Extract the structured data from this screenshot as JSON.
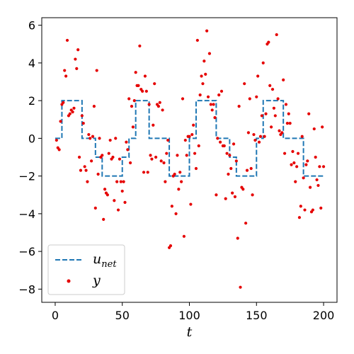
{
  "chart_data": {
    "type": "line",
    "title": "",
    "xlabel": "t",
    "ylabel": "",
    "xlim": [
      -10,
      210
    ],
    "ylim": [
      -8.7,
      6.4
    ],
    "xticks": [
      0,
      50,
      100,
      150,
      200
    ],
    "yticks": [
      -8,
      -6,
      -4,
      -2,
      0,
      2,
      4,
      6
    ],
    "x_tick_labels": [
      "0",
      "50",
      "100",
      "150",
      "200"
    ],
    "y_tick_labels": [
      "−8",
      "−6",
      "−4",
      "−2",
      "0",
      "2",
      "4",
      "6"
    ],
    "grid": false,
    "legend_position": "lower-left",
    "series": [
      {
        "name": "u",
        "name_subscript": "net",
        "style": "dashed-step",
        "color": "#1f77b4",
        "segments": [
          {
            "x0": 0,
            "x1": 5,
            "y": 0
          },
          {
            "x0": 5,
            "x1": 20,
            "y": 2
          },
          {
            "x0": 20,
            "x1": 30,
            "y": 0
          },
          {
            "x0": 30,
            "x1": 35,
            "y": -1
          },
          {
            "x0": 35,
            "x1": 50,
            "y": -2
          },
          {
            "x0": 50,
            "x1": 55,
            "y": -1
          },
          {
            "x0": 55,
            "x1": 60,
            "y": 0
          },
          {
            "x0": 60,
            "x1": 70,
            "y": 2
          },
          {
            "x0": 70,
            "x1": 85,
            "y": 0
          },
          {
            "x0": 85,
            "x1": 100,
            "y": -2
          },
          {
            "x0": 100,
            "x1": 105,
            "y": 0
          },
          {
            "x0": 105,
            "x1": 120,
            "y": 2
          },
          {
            "x0": 120,
            "x1": 130,
            "y": 0
          },
          {
            "x0": 130,
            "x1": 135,
            "y": -1
          },
          {
            "x0": 135,
            "x1": 150,
            "y": -2
          },
          {
            "x0": 150,
            "x1": 155,
            "y": 0
          },
          {
            "x0": 155,
            "x1": 170,
            "y": 2
          },
          {
            "x0": 170,
            "x1": 185,
            "y": 0
          },
          {
            "x0": 185,
            "x1": 200,
            "y": -2
          }
        ]
      },
      {
        "name": "y",
        "style": "scatter",
        "color": "#e50000",
        "points": [
          [
            1,
            -0.1
          ],
          [
            2,
            -0.5
          ],
          [
            3,
            -0.6
          ],
          [
            4,
            0.9
          ],
          [
            5,
            1.8
          ],
          [
            6,
            1.9
          ],
          [
            7,
            3.6
          ],
          [
            8,
            3.3
          ],
          [
            9,
            5.2
          ],
          [
            10,
            1.2
          ],
          [
            11,
            1.3
          ],
          [
            12,
            1.5
          ],
          [
            13,
            1.4
          ],
          [
            14,
            1.6
          ],
          [
            15,
            4.2
          ],
          [
            16,
            3.7
          ],
          [
            17,
            4.7
          ],
          [
            18,
            -1.0
          ],
          [
            19,
            -1.7
          ],
          [
            20,
            1.2
          ],
          [
            21,
            0.8
          ],
          [
            22,
            -1.5
          ],
          [
            23,
            -1.7
          ],
          [
            24,
            -2.3
          ],
          [
            25,
            0.2
          ],
          [
            26,
            0.0
          ],
          [
            27,
            -1.2
          ],
          [
            28,
            0.1
          ],
          [
            29,
            1.7
          ],
          [
            30,
            -3.7
          ],
          [
            31,
            3.6
          ],
          [
            32,
            -1.9
          ],
          [
            33,
            0.0
          ],
          [
            34,
            -1.0
          ],
          [
            35,
            -0.9
          ],
          [
            36,
            -4.3
          ],
          [
            37,
            -2.7
          ],
          [
            38,
            -2.9
          ],
          [
            39,
            -3.0
          ],
          [
            40,
            -0.8
          ],
          [
            41,
            -0.1
          ],
          [
            42,
            -1.1
          ],
          [
            43,
            -1.0
          ],
          [
            44,
            -3.3
          ],
          [
            45,
            0.0
          ],
          [
            46,
            -2.3
          ],
          [
            47,
            -3.8
          ],
          [
            48,
            -1.1
          ],
          [
            49,
            -2.3
          ],
          [
            50,
            -2.8
          ],
          [
            51,
            -2.3
          ],
          [
            52,
            -3.4
          ],
          [
            53,
            -0.2
          ],
          [
            54,
            -0.6
          ],
          [
            55,
            2.1
          ],
          [
            56,
            -1.3
          ],
          [
            57,
            1.7
          ],
          [
            58,
            0.6
          ],
          [
            59,
            2.0
          ],
          [
            60,
            3.5
          ],
          [
            61,
            2.8
          ],
          [
            62,
            2.8
          ],
          [
            63,
            4.9
          ],
          [
            64,
            2.6
          ],
          [
            65,
            2.5
          ],
          [
            66,
            -1.8
          ],
          [
            67,
            3.3
          ],
          [
            68,
            2.5
          ],
          [
            69,
            -1.8
          ],
          [
            70,
            1.8
          ],
          [
            71,
            -0.9
          ],
          [
            72,
            -1.1
          ],
          [
            73,
            0.7
          ],
          [
            74,
            2.9
          ],
          [
            75,
            -1.0
          ],
          [
            76,
            1.8
          ],
          [
            77,
            1.7
          ],
          [
            78,
            1.9
          ],
          [
            79,
            -1.2
          ],
          [
            80,
            1.5
          ],
          [
            81,
            -1.3
          ],
          [
            82,
            -2.3
          ],
          [
            83,
            -0.8
          ],
          [
            84,
            -0.1
          ],
          [
            85,
            -5.8
          ],
          [
            86,
            -5.7
          ],
          [
            87,
            -3.6
          ],
          [
            88,
            -2.0
          ],
          [
            89,
            -1.9
          ],
          [
            90,
            -4.0
          ],
          [
            91,
            -0.9
          ],
          [
            92,
            -2.7
          ],
          [
            93,
            -1.8
          ],
          [
            94,
            -2.3
          ],
          [
            95,
            2.1
          ],
          [
            96,
            -5.2
          ],
          [
            97,
            -0.1
          ],
          [
            98,
            -0.9
          ],
          [
            99,
            0.1
          ],
          [
            100,
            0.1
          ],
          [
            101,
            -3.5
          ],
          [
            102,
            0.2
          ],
          [
            103,
            0.7
          ],
          [
            104,
            -0.8
          ],
          [
            105,
            -1.6
          ],
          [
            106,
            5.2
          ],
          [
            107,
            -0.4
          ],
          [
            108,
            2.3
          ],
          [
            109,
            3.3
          ],
          [
            110,
            2.9
          ],
          [
            111,
            4.1
          ],
          [
            112,
            3.4
          ],
          [
            113,
            5.7
          ],
          [
            114,
            2.2
          ],
          [
            115,
            4.5
          ],
          [
            116,
            1.8
          ],
          [
            117,
            1.5
          ],
          [
            118,
            1.8
          ],
          [
            119,
            1.1
          ],
          [
            120,
            -3.0
          ],
          [
            121,
            0.0
          ],
          [
            122,
            2.3
          ],
          [
            123,
            -0.2
          ],
          [
            124,
            2.5
          ],
          [
            125,
            -0.4
          ],
          [
            126,
            -0.4
          ],
          [
            127,
            -3.2
          ],
          [
            128,
            -0.8
          ],
          [
            129,
            -1.9
          ],
          [
            130,
            -0.9
          ],
          [
            131,
            -1.6
          ],
          [
            132,
            -2.9
          ],
          [
            133,
            -0.3
          ],
          [
            134,
            -3.1
          ],
          [
            135,
            -1.2
          ],
          [
            136,
            -5.3
          ],
          [
            137,
            1.7
          ],
          [
            138,
            -7.9
          ],
          [
            139,
            -2.6
          ],
          [
            140,
            -2.7
          ],
          [
            141,
            2.9
          ],
          [
            142,
            -4.5
          ],
          [
            143,
            -1.7
          ],
          [
            144,
            0.3
          ],
          [
            145,
            2.1
          ],
          [
            146,
            -1.6
          ],
          [
            147,
            -3.0
          ],
          [
            148,
            0.2
          ],
          [
            149,
            -0.1
          ],
          [
            150,
            2.2
          ],
          [
            151,
            3.3
          ],
          [
            152,
            -0.2
          ],
          [
            153,
            0.1
          ],
          [
            154,
            1.2
          ],
          [
            155,
            4.0
          ],
          [
            156,
            0.1
          ],
          [
            157,
            1.3
          ],
          [
            158,
            5.0
          ],
          [
            159,
            5.1
          ],
          [
            160,
            2.8
          ],
          [
            161,
            0.6
          ],
          [
            162,
            2.6
          ],
          [
            163,
            1.6
          ],
          [
            164,
            1.2
          ],
          [
            165,
            5.5
          ],
          [
            166,
            2.1
          ],
          [
            167,
            0.4
          ],
          [
            168,
            0.2
          ],
          [
            169,
            0.3
          ],
          [
            170,
            3.1
          ],
          [
            171,
            -0.8
          ],
          [
            172,
            1.8
          ],
          [
            173,
            0.8
          ],
          [
            174,
            1.3
          ],
          [
            175,
            0.8
          ],
          [
            176,
            -1.4
          ],
          [
            177,
            -0.7
          ],
          [
            178,
            -1.3
          ],
          [
            179,
            -2.3
          ],
          [
            180,
            -1.5
          ],
          [
            181,
            -0.8
          ],
          [
            182,
            -4.2
          ],
          [
            183,
            -3.6
          ],
          [
            184,
            0.1
          ],
          [
            185,
            -2.1
          ],
          [
            186,
            -3.8
          ],
          [
            187,
            -1.4
          ],
          [
            188,
            -1.2
          ],
          [
            189,
            1.3
          ],
          [
            190,
            -2.6
          ],
          [
            191,
            -3.9
          ],
          [
            192,
            -3.8
          ],
          [
            193,
            0.5
          ],
          [
            194,
            -1.0
          ],
          [
            195,
            -2.2
          ],
          [
            196,
            -2.5
          ],
          [
            197,
            -1.5
          ],
          [
            198,
            -3.7
          ],
          [
            199,
            0.6
          ],
          [
            200,
            -1.5
          ]
        ]
      }
    ]
  }
}
